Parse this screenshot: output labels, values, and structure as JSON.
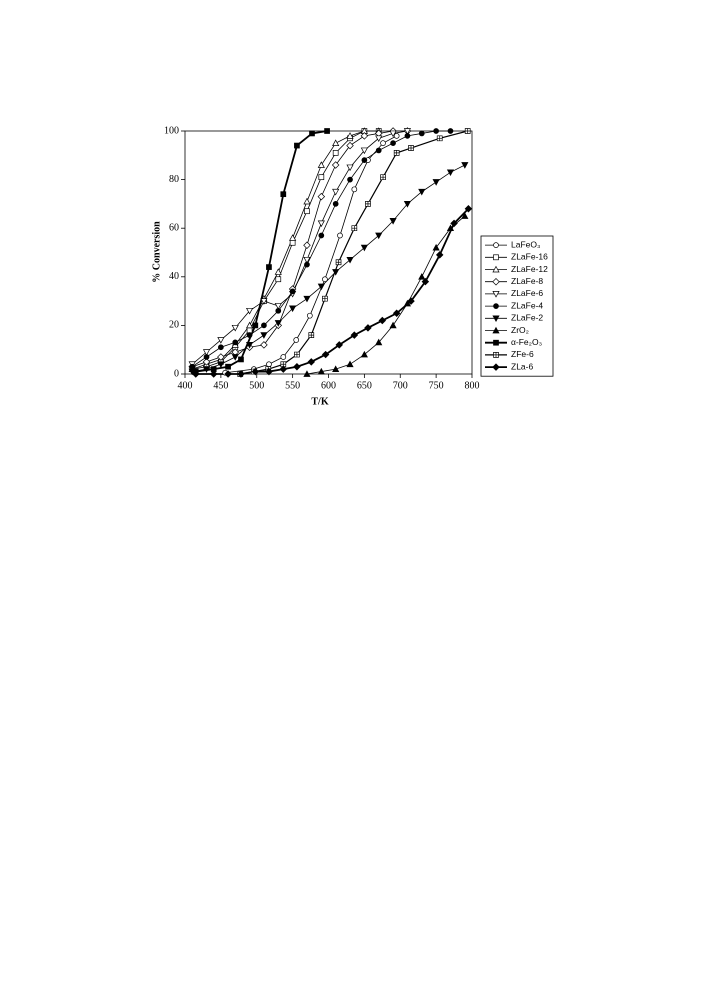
{
  "chart_data": {
    "type": "line",
    "x_label": "T/K",
    "y_label": "% Conversion",
    "xlim": [
      400,
      800
    ],
    "xticks": [
      400,
      450,
      500,
      550,
      600,
      650,
      700,
      750,
      800
    ],
    "ylim": [
      0,
      100
    ],
    "yticks": [
      0,
      20,
      40,
      60,
      80,
      100
    ],
    "grid": false,
    "legend": "right",
    "series": [
      {
        "name": "LaFeO₃",
        "color": "#000000",
        "marker": "circle",
        "filled": false,
        "line_width": 0.8,
        "x": [
          456,
          496,
          517,
          537,
          555,
          574,
          595,
          616,
          636,
          655,
          676,
          695
        ],
        "values": [
          0.5,
          2,
          4,
          7,
          14,
          24,
          39,
          57,
          76,
          88,
          95,
          98
        ]
      },
      {
        "name": "ZLaFe-16",
        "color": "#000000",
        "marker": "square",
        "filled": false,
        "line_width": 0.8,
        "x": [
          410,
          430,
          450,
          470,
          490,
          510,
          530,
          550,
          570,
          590,
          610,
          630,
          650,
          670
        ],
        "values": [
          2,
          3,
          5,
          11,
          18,
          30,
          39,
          54,
          67,
          81,
          91,
          97,
          100,
          100
        ]
      },
      {
        "name": "ZLaFe-12",
        "color": "#000000",
        "marker": "triangle",
        "filled": false,
        "line_width": 0.8,
        "x": [
          410,
          430,
          450,
          470,
          490,
          510,
          530,
          550,
          570,
          590,
          610,
          630,
          650,
          670
        ],
        "values": [
          2,
          4,
          6,
          12,
          20,
          31,
          42,
          56,
          71,
          86,
          95,
          98,
          100,
          100
        ]
      },
      {
        "name": "ZLaFe-8",
        "color": "#000000",
        "marker": "diamond",
        "filled": false,
        "line_width": 0.8,
        "x": [
          410,
          430,
          450,
          470,
          490,
          510,
          530,
          550,
          570,
          590,
          610,
          630,
          650,
          670,
          690,
          710
        ],
        "values": [
          3,
          5,
          7,
          9,
          11,
          12,
          20,
          35,
          53,
          73,
          86,
          94,
          98,
          99,
          100,
          100
        ]
      },
      {
        "name": "ZLaFe-6",
        "color": "#000000",
        "marker": "triangle-down",
        "filled": false,
        "line_width": 0.8,
        "x": [
          410,
          430,
          450,
          470,
          490,
          510,
          530,
          550,
          570,
          590,
          610,
          630,
          650,
          670,
          690,
          710
        ],
        "values": [
          4,
          9,
          14,
          19,
          26,
          30,
          28,
          33,
          47,
          62,
          75,
          85,
          92,
          97,
          99,
          100
        ]
      },
      {
        "name": "ZLaFe-4",
        "color": "#000000",
        "marker": "circle",
        "filled": true,
        "line_width": 0.8,
        "x": [
          410,
          430,
          450,
          470,
          490,
          510,
          530,
          550,
          570,
          590,
          610,
          630,
          650,
          670,
          690,
          710,
          730,
          750,
          770
        ],
        "values": [
          3,
          7,
          11,
          13,
          16,
          20,
          26,
          34,
          45,
          57,
          70,
          80,
          88,
          92,
          95,
          98,
          99,
          100,
          100
        ]
      },
      {
        "name": "ZLaFe-2",
        "color": "#000000",
        "marker": "triangle-down",
        "filled": true,
        "line_width": 0.8,
        "x": [
          410,
          430,
          450,
          470,
          490,
          510,
          530,
          550,
          570,
          590,
          610,
          630,
          650,
          670,
          690,
          710,
          730,
          750,
          770,
          790
        ],
        "values": [
          1,
          2,
          4,
          7,
          12,
          16,
          21,
          27,
          31,
          36,
          42,
          47,
          52,
          57,
          63,
          70,
          75,
          79,
          83,
          86
        ]
      },
      {
        "name": "ZrO₂",
        "color": "#000000",
        "marker": "triangle",
        "filled": true,
        "line_width": 0.8,
        "x": [
          570,
          590,
          610,
          630,
          650,
          670,
          690,
          710,
          730,
          750,
          770,
          790
        ],
        "values": [
          0,
          1,
          2,
          4,
          8,
          13,
          20,
          29,
          40,
          52,
          60,
          65
        ]
      },
      {
        "name": "α-Fe₂O₃",
        "color": "#000000",
        "marker": "square",
        "filled": true,
        "line_width": 1.8,
        "x": [
          415,
          440,
          460,
          478,
          498,
          517,
          537,
          556,
          577,
          598
        ],
        "values": [
          1,
          2,
          3,
          6,
          20,
          44,
          74,
          94,
          99,
          100
        ]
      },
      {
        "name": "ZFe-6",
        "color": "#000000",
        "marker": "square-plus",
        "filled": false,
        "line_width": 1.2,
        "x": [
          477,
          496,
          516,
          537,
          556,
          576,
          595,
          614,
          636,
          655,
          676,
          695,
          715,
          755,
          794
        ],
        "values": [
          0,
          1,
          2,
          4,
          8,
          16,
          31,
          46,
          60,
          70,
          81,
          91,
          93,
          97,
          100
        ]
      },
      {
        "name": "ZLa-6",
        "color": "#000000",
        "marker": "diamond",
        "filled": true,
        "line_width": 1.8,
        "x": [
          415,
          440,
          460,
          478,
          498,
          517,
          537,
          556,
          576,
          596,
          615,
          636,
          655,
          675,
          695,
          715,
          735,
          755,
          775,
          795
        ],
        "values": [
          0,
          0,
          0,
          0,
          1,
          1,
          2,
          3,
          5,
          8,
          12,
          16,
          19,
          22,
          25,
          30,
          38,
          49,
          62,
          68
        ]
      }
    ]
  }
}
